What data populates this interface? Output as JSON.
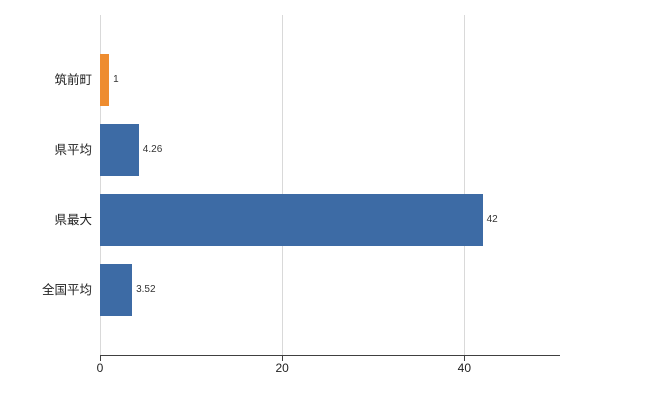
{
  "chart_data": {
    "type": "bar",
    "orientation": "horizontal",
    "title": "",
    "xlabel": "",
    "ylabel": "",
    "categories": [
      "筑前町",
      "県平均",
      "県最大",
      "全国平均"
    ],
    "values": [
      1,
      4.26,
      42,
      3.52
    ],
    "value_labels": [
      "1",
      "4.26",
      "42",
      "3.52"
    ],
    "series": [
      {
        "name": "value",
        "values": [
          1,
          4.26,
          42,
          3.52
        ]
      }
    ],
    "bar_colors": [
      "#ee8c2f",
      "#3d6ba5",
      "#3d6ba5",
      "#3d6ba5"
    ],
    "xlim": [
      0,
      50.5
    ],
    "x_ticks": [
      0,
      20,
      40
    ],
    "x_tick_labels": [
      "0",
      "20",
      "40"
    ],
    "grid": "vertical",
    "legend": "none"
  },
  "colors": {
    "axis": "#404040",
    "grid": "#d9d9d9",
    "label": "#333333",
    "highlight_bar": "#ee8c2f",
    "default_bar": "#3d6ba5"
  }
}
